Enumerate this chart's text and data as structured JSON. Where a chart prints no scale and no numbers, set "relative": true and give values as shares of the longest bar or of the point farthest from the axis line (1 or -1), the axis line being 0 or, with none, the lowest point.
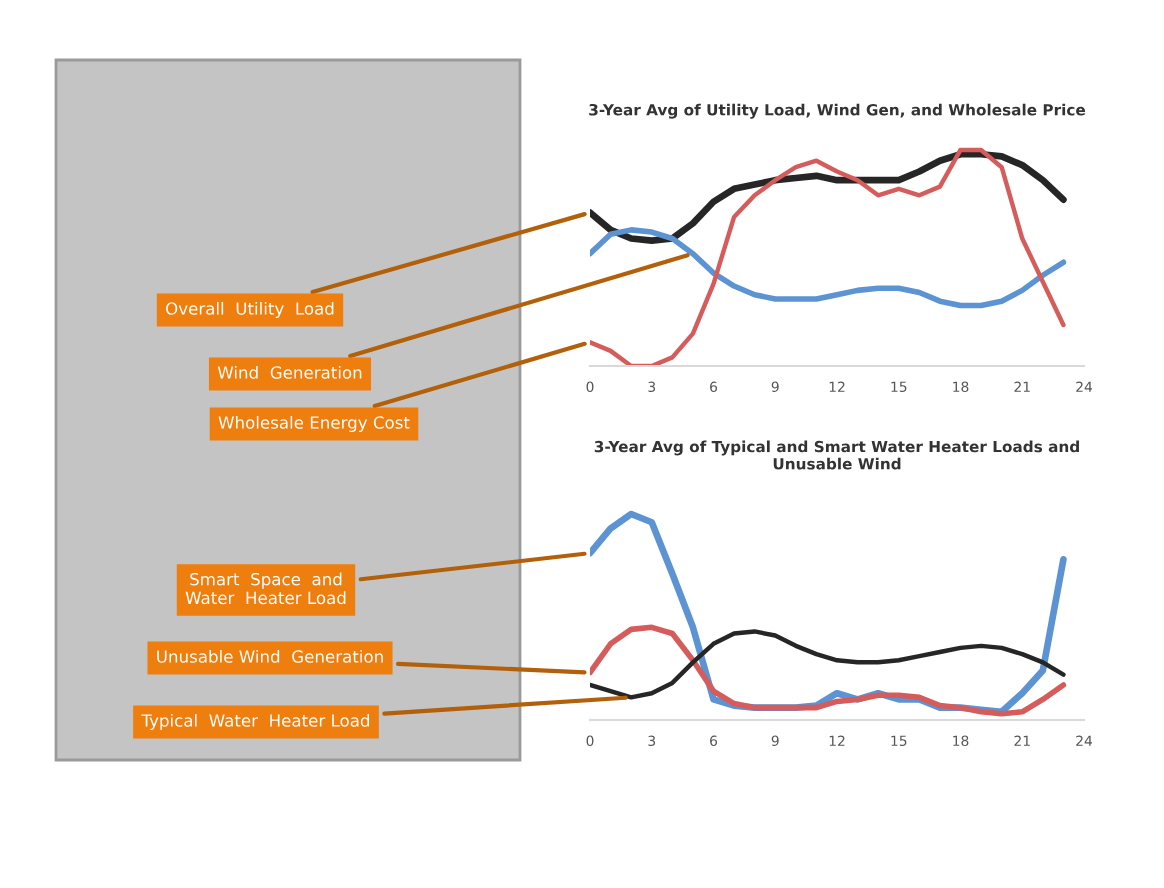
{
  "chart_data": [
    {
      "type": "line",
      "title": "3-Year Avg of Utility Load, Wind Gen, and Wholesale Price",
      "relative": true,
      "legend": false,
      "x": [
        0,
        1,
        2,
        3,
        4,
        5,
        6,
        7,
        8,
        9,
        10,
        11,
        12,
        13,
        14,
        15,
        16,
        17,
        18,
        19,
        20,
        21,
        22,
        23
      ],
      "xlim": [
        0,
        24
      ],
      "xticks": [
        0,
        3,
        6,
        9,
        12,
        15,
        18,
        21,
        24
      ],
      "series": [
        {
          "name": "Overall  Utility  Load",
          "color": "#262626",
          "values": [
            0.71,
            0.63,
            0.59,
            0.58,
            0.59,
            0.66,
            0.76,
            0.82,
            0.84,
            0.86,
            0.87,
            0.88,
            0.86,
            0.86,
            0.86,
            0.86,
            0.9,
            0.95,
            0.98,
            0.98,
            0.97,
            0.93,
            0.86,
            0.77
          ]
        },
        {
          "name": "Wind  Generation",
          "color": "#5b93d3",
          "values": [
            0.52,
            0.61,
            0.63,
            0.62,
            0.59,
            0.52,
            0.43,
            0.37,
            0.33,
            0.31,
            0.31,
            0.31,
            0.33,
            0.35,
            0.36,
            0.36,
            0.34,
            0.3,
            0.28,
            0.28,
            0.3,
            0.35,
            0.42,
            0.48
          ]
        },
        {
          "name": "Wholesale Energy Cost",
          "color": "#d65c5c",
          "values": [
            0.11,
            0.07,
            0,
            0,
            0.04,
            0.15,
            0.38,
            0.69,
            0.79,
            0.86,
            0.92,
            0.95,
            0.9,
            0.86,
            0.79,
            0.82,
            0.79,
            0.83,
            1,
            1,
            0.92,
            0.59,
            0.39,
            0.19
          ]
        }
      ]
    },
    {
      "type": "line",
      "title": "3-Year Avg of Typical and Smart Water Heater Loads and\nUnusable Wind",
      "relative": true,
      "legend": false,
      "x": [
        0,
        1,
        2,
        3,
        4,
        5,
        6,
        7,
        8,
        9,
        10,
        11,
        12,
        13,
        14,
        15,
        16,
        17,
        18,
        19,
        20,
        21,
        22,
        23
      ],
      "xlim": [
        0,
        24
      ],
      "xticks": [
        0,
        3,
        6,
        9,
        12,
        15,
        18,
        21,
        24
      ],
      "series": [
        {
          "name": "Smart  Space  and\nWater  Heater Load",
          "color": "#5b93d3",
          "values": [
            0.81,
            0.93,
            1,
            0.96,
            0.71,
            0.45,
            0.1,
            0.07,
            0.06,
            0.06,
            0.06,
            0.07,
            0.13,
            0.1,
            0.13,
            0.1,
            0.1,
            0.06,
            0.06,
            0.05,
            0.04,
            0.13,
            0.24,
            0.78
          ]
        },
        {
          "name": "Unusable Wind  Generation",
          "color": "#d65c5c",
          "values": [
            0.23,
            0.37,
            0.44,
            0.45,
            0.42,
            0.29,
            0.14,
            0.08,
            0.06,
            0.06,
            0.06,
            0.06,
            0.09,
            0.1,
            0.12,
            0.12,
            0.11,
            0.07,
            0.06,
            0.04,
            0.03,
            0.04,
            0.1,
            0.17
          ]
        },
        {
          "name": "Typical  Water  Heater Load",
          "color": "#262626",
          "values": [
            0.17,
            0.14,
            0.11,
            0.13,
            0.18,
            0.28,
            0.37,
            0.42,
            0.43,
            0.41,
            0.36,
            0.32,
            0.29,
            0.28,
            0.28,
            0.29,
            0.31,
            0.33,
            0.35,
            0.36,
            0.35,
            0.32,
            0.28,
            0.22
          ]
        }
      ]
    }
  ]
}
